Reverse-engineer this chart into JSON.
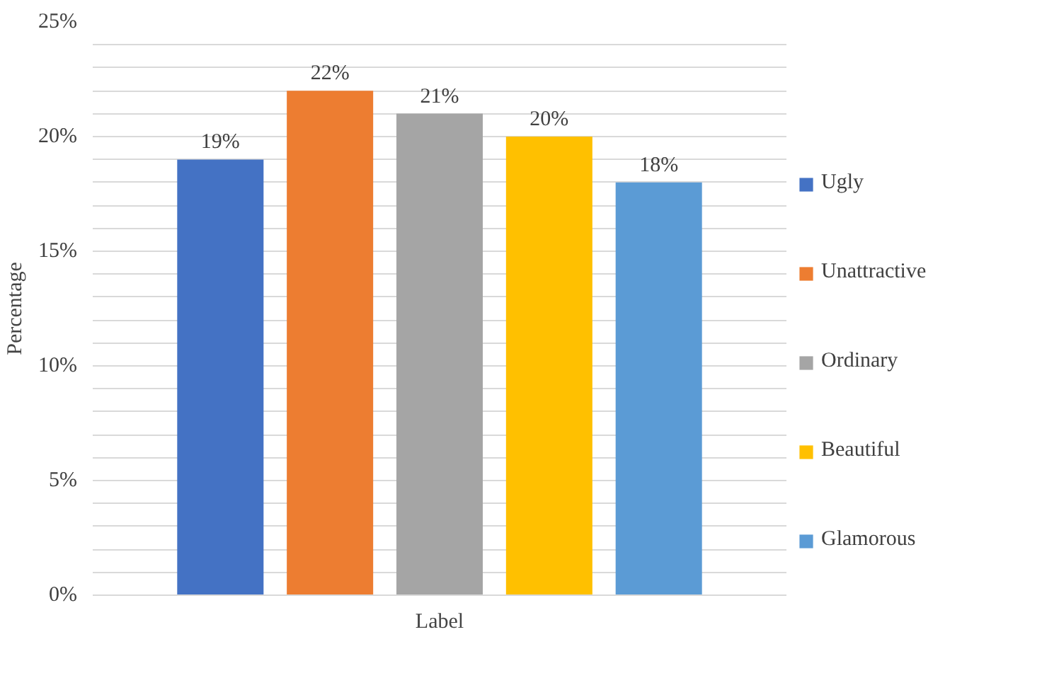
{
  "chart_data": {
    "type": "bar",
    "xlabel": "Label",
    "ylabel": "Percentage",
    "categories": [
      null
    ],
    "series": [
      {
        "name": "Ugly",
        "color": "#4472c4",
        "values": [
          19
        ],
        "value_labels": [
          "19%"
        ]
      },
      {
        "name": "Unattractive",
        "color": "#ed7d31",
        "values": [
          22
        ],
        "value_labels": [
          "22%"
        ]
      },
      {
        "name": "Ordinary",
        "color": "#a5a5a5",
        "values": [
          21
        ],
        "value_labels": [
          "21%"
        ]
      },
      {
        "name": "Beautiful",
        "color": "#ffc000",
        "values": [
          20
        ],
        "value_labels": [
          "20%"
        ]
      },
      {
        "name": "Glamorous",
        "color": "#5b9bd5",
        "values": [
          18
        ],
        "value_labels": [
          "18%"
        ]
      }
    ],
    "ylim": [
      0,
      25
    ],
    "yticks": [
      {
        "value": 0,
        "label": "0%"
      },
      {
        "value": 1,
        "label": null
      },
      {
        "value": 2,
        "label": null
      },
      {
        "value": 3,
        "label": null
      },
      {
        "value": 4,
        "label": null
      },
      {
        "value": 5,
        "label": "5%"
      },
      {
        "value": 6,
        "label": null
      },
      {
        "value": 7,
        "label": null
      },
      {
        "value": 8,
        "label": null
      },
      {
        "value": 9,
        "label": null
      },
      {
        "value": 10,
        "label": "10%"
      },
      {
        "value": 11,
        "label": null
      },
      {
        "value": 12,
        "label": null
      },
      {
        "value": 13,
        "label": null
      },
      {
        "value": 14,
        "label": null
      },
      {
        "value": 15,
        "label": "15%"
      },
      {
        "value": 16,
        "label": null
      },
      {
        "value": 17,
        "label": null
      },
      {
        "value": 18,
        "label": null
      },
      {
        "value": 19,
        "label": null
      },
      {
        "value": 20,
        "label": "20%"
      },
      {
        "value": 21,
        "label": null
      },
      {
        "value": 22,
        "label": null
      },
      {
        "value": 23,
        "label": null
      },
      {
        "value": 24,
        "label": null
      },
      {
        "value": 25,
        "label": "25%"
      }
    ],
    "grid": "y",
    "legend": "right"
  }
}
